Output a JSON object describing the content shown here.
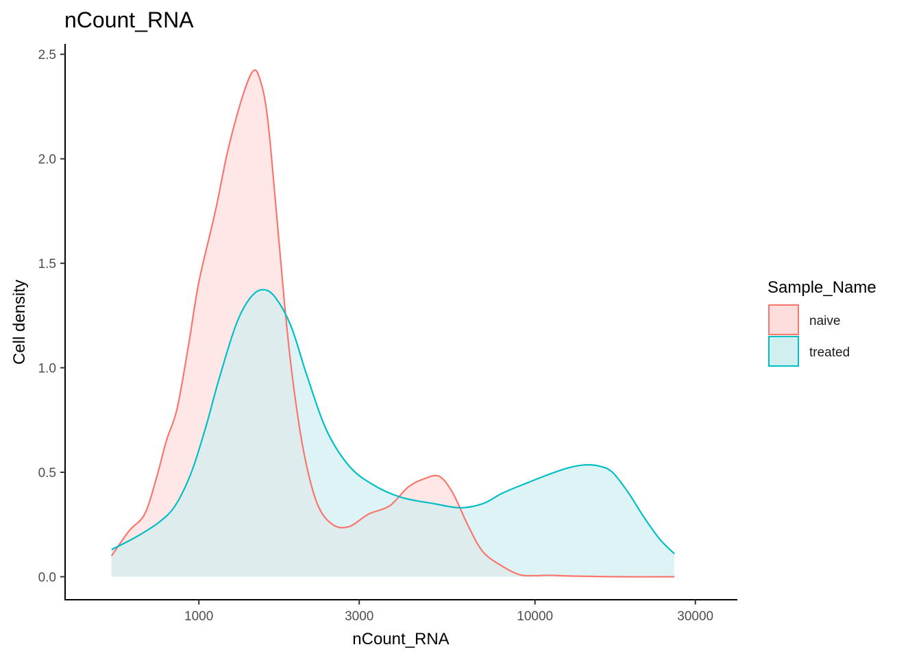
{
  "chart_data": {
    "type": "area",
    "title": "nCount_RNA",
    "xlabel": "nCount_RNA",
    "ylabel": "Cell density",
    "x_scale": "log10",
    "xlim": [
      400,
      40000
    ],
    "ylim": [
      -0.11,
      2.55
    ],
    "x_ticks": [
      1000,
      3000,
      10000,
      30000
    ],
    "x_tick_labels": [
      "1000",
      "3000",
      "10000",
      "30000"
    ],
    "y_ticks": [
      0,
      0.5,
      1,
      1.5,
      2,
      2.5
    ],
    "y_tick_labels": [
      "0.0",
      "0.5",
      "1.0",
      "1.5",
      "2.0",
      "2.5"
    ],
    "grid": false,
    "legend": {
      "title": "Sample_Name",
      "position": "right"
    },
    "series": [
      {
        "name": "naive",
        "color": "#F8766D",
        "fill": "#FDDEDD",
        "points": [
          [
            550,
            0.1
          ],
          [
            620,
            0.22
          ],
          [
            690,
            0.3
          ],
          [
            750,
            0.48
          ],
          [
            800,
            0.65
          ],
          [
            860,
            0.8
          ],
          [
            930,
            1.1
          ],
          [
            1000,
            1.41
          ],
          [
            1120,
            1.75
          ],
          [
            1220,
            2.04
          ],
          [
            1350,
            2.3
          ],
          [
            1450,
            2.42
          ],
          [
            1520,
            2.38
          ],
          [
            1600,
            2.2
          ],
          [
            1700,
            1.75
          ],
          [
            1800,
            1.3
          ],
          [
            1900,
            0.95
          ],
          [
            2050,
            0.6
          ],
          [
            2250,
            0.35
          ],
          [
            2500,
            0.25
          ],
          [
            2800,
            0.24
          ],
          [
            3200,
            0.3
          ],
          [
            3700,
            0.34
          ],
          [
            4200,
            0.43
          ],
          [
            4700,
            0.47
          ],
          [
            5200,
            0.48
          ],
          [
            5700,
            0.4
          ],
          [
            6300,
            0.25
          ],
          [
            7000,
            0.12
          ],
          [
            8000,
            0.05
          ],
          [
            9000,
            0.01
          ],
          [
            10000,
            0.005
          ],
          [
            11000,
            0.007
          ],
          [
            13000,
            0.003
          ],
          [
            18000,
            0.0
          ],
          [
            26000,
            0.0
          ]
        ]
      },
      {
        "name": "treated",
        "color": "#00BFC4",
        "fill": "#D1EFF1",
        "points": [
          [
            550,
            0.13
          ],
          [
            650,
            0.19
          ],
          [
            760,
            0.26
          ],
          [
            850,
            0.34
          ],
          [
            950,
            0.5
          ],
          [
            1050,
            0.72
          ],
          [
            1150,
            0.95
          ],
          [
            1300,
            1.22
          ],
          [
            1450,
            1.35
          ],
          [
            1600,
            1.37
          ],
          [
            1750,
            1.3
          ],
          [
            1900,
            1.18
          ],
          [
            2100,
            0.96
          ],
          [
            2400,
            0.7
          ],
          [
            2800,
            0.53
          ],
          [
            3300,
            0.44
          ],
          [
            4000,
            0.38
          ],
          [
            5000,
            0.35
          ],
          [
            6000,
            0.33
          ],
          [
            7000,
            0.35
          ],
          [
            8000,
            0.4
          ],
          [
            9500,
            0.45
          ],
          [
            11000,
            0.49
          ],
          [
            12500,
            0.52
          ],
          [
            14000,
            0.535
          ],
          [
            15500,
            0.53
          ],
          [
            17000,
            0.5
          ],
          [
            19000,
            0.4
          ],
          [
            21000,
            0.29
          ],
          [
            23500,
            0.18
          ],
          [
            26000,
            0.11
          ]
        ]
      }
    ]
  }
}
